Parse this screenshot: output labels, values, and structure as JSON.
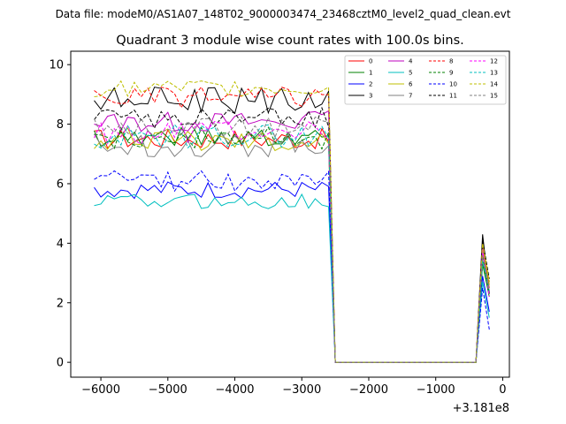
{
  "chart_data": {
    "type": "line",
    "suptitle": "Data file: modeM0/AS1A07_148T02_9000003474_23468cztM0_level2_quad_clean.evt",
    "title": "Quadrant 3 module wise count rates with 100.0s bins.",
    "xlabel": "",
    "ylabel": "",
    "x_offset_label": "+3.181e8",
    "xlim": [
      -6450,
      100
    ],
    "ylim": [
      -0.5,
      10.45
    ],
    "x_ticks": [
      -6000,
      -5000,
      -4000,
      -3000,
      -2000,
      -1000,
      0
    ],
    "x_tick_labels": [
      "−6000",
      "−5000",
      "−4000",
      "−3000",
      "−2000",
      "−1000",
      "0"
    ],
    "y_ticks": [
      0,
      2,
      4,
      6,
      8,
      10
    ],
    "y_tick_labels": [
      "0",
      "2",
      "4",
      "6",
      "8",
      "10"
    ],
    "grid": false,
    "legend": {
      "position": "top-right",
      "columns": 4
    },
    "x_active": {
      "start": -6100,
      "step": 100,
      "count": 36
    },
    "x_gap": {
      "end_active": -2600,
      "zero_start": -2500,
      "zero_end": -400
    },
    "x_burst": [
      -400,
      -300,
      -200
    ],
    "series": [
      {
        "name": "0",
        "color": "#ff0000",
        "dash": "solid",
        "mean": 7.5,
        "amp": 0.35,
        "burst": [
          0,
          3.6,
          2.5
        ]
      },
      {
        "name": "1",
        "color": "#008000",
        "dash": "solid",
        "mean": 7.6,
        "amp": 0.35,
        "burst": [
          0,
          3.3,
          2.2
        ]
      },
      {
        "name": "2",
        "color": "#0000ff",
        "dash": "solid",
        "mean": 5.8,
        "amp": 0.3,
        "burst": [
          0,
          2.9,
          1.7
        ]
      },
      {
        "name": "3",
        "color": "#000000",
        "dash": "solid",
        "mean": 8.8,
        "amp": 0.45,
        "burst": [
          0,
          4.3,
          2.3
        ]
      },
      {
        "name": "4",
        "color": "#bf00bf",
        "dash": "solid",
        "mean": 8.1,
        "amp": 0.35,
        "burst": [
          0,
          3.8,
          2.6
        ]
      },
      {
        "name": "5",
        "color": "#00bfbf",
        "dash": "solid",
        "mean": 5.4,
        "amp": 0.25,
        "burst": [
          0,
          2.7,
          1.5
        ]
      },
      {
        "name": "6",
        "color": "#bfbf00",
        "dash": "solid",
        "mean": 7.5,
        "amp": 0.4,
        "burst": [
          0,
          3.9,
          2.6
        ]
      },
      {
        "name": "7",
        "color": "#808080",
        "dash": "solid",
        "mean": 7.3,
        "amp": 0.4,
        "burst": [
          0,
          3.7,
          2.4
        ]
      },
      {
        "name": "8",
        "color": "#ff0000",
        "dash": "dashed",
        "mean": 8.9,
        "amp": 0.35,
        "burst": [
          0,
          4.0,
          2.7
        ]
      },
      {
        "name": "9",
        "color": "#008000",
        "dash": "dashed",
        "mean": 7.5,
        "amp": 0.4,
        "burst": [
          0,
          3.5,
          2.3
        ]
      },
      {
        "name": "10",
        "color": "#0000ff",
        "dash": "dashed",
        "mean": 6.1,
        "amp": 0.35,
        "burst": [
          0,
          2.5,
          1.1
        ]
      },
      {
        "name": "11",
        "color": "#000000",
        "dash": "dashed",
        "mean": 8.2,
        "amp": 0.35,
        "burst": [
          0,
          4.1,
          2.8
        ]
      },
      {
        "name": "12",
        "color": "#ff00ff",
        "dash": "dashed",
        "mean": 7.7,
        "amp": 0.4,
        "burst": [
          0,
          3.8,
          2.2
        ]
      },
      {
        "name": "13",
        "color": "#00bfbf",
        "dash": "dashed",
        "mean": 7.6,
        "amp": 0.4,
        "burst": [
          0,
          3.4,
          2.4
        ]
      },
      {
        "name": "14",
        "color": "#bfbf00",
        "dash": "dashed",
        "mean": 9.2,
        "amp": 0.3,
        "burst": [
          0,
          4.0,
          2.7
        ]
      },
      {
        "name": "15",
        "color": "#808080",
        "dash": "dashed",
        "mean": 7.9,
        "amp": 0.35,
        "burst": [
          0,
          3.6,
          2.4
        ]
      }
    ]
  }
}
